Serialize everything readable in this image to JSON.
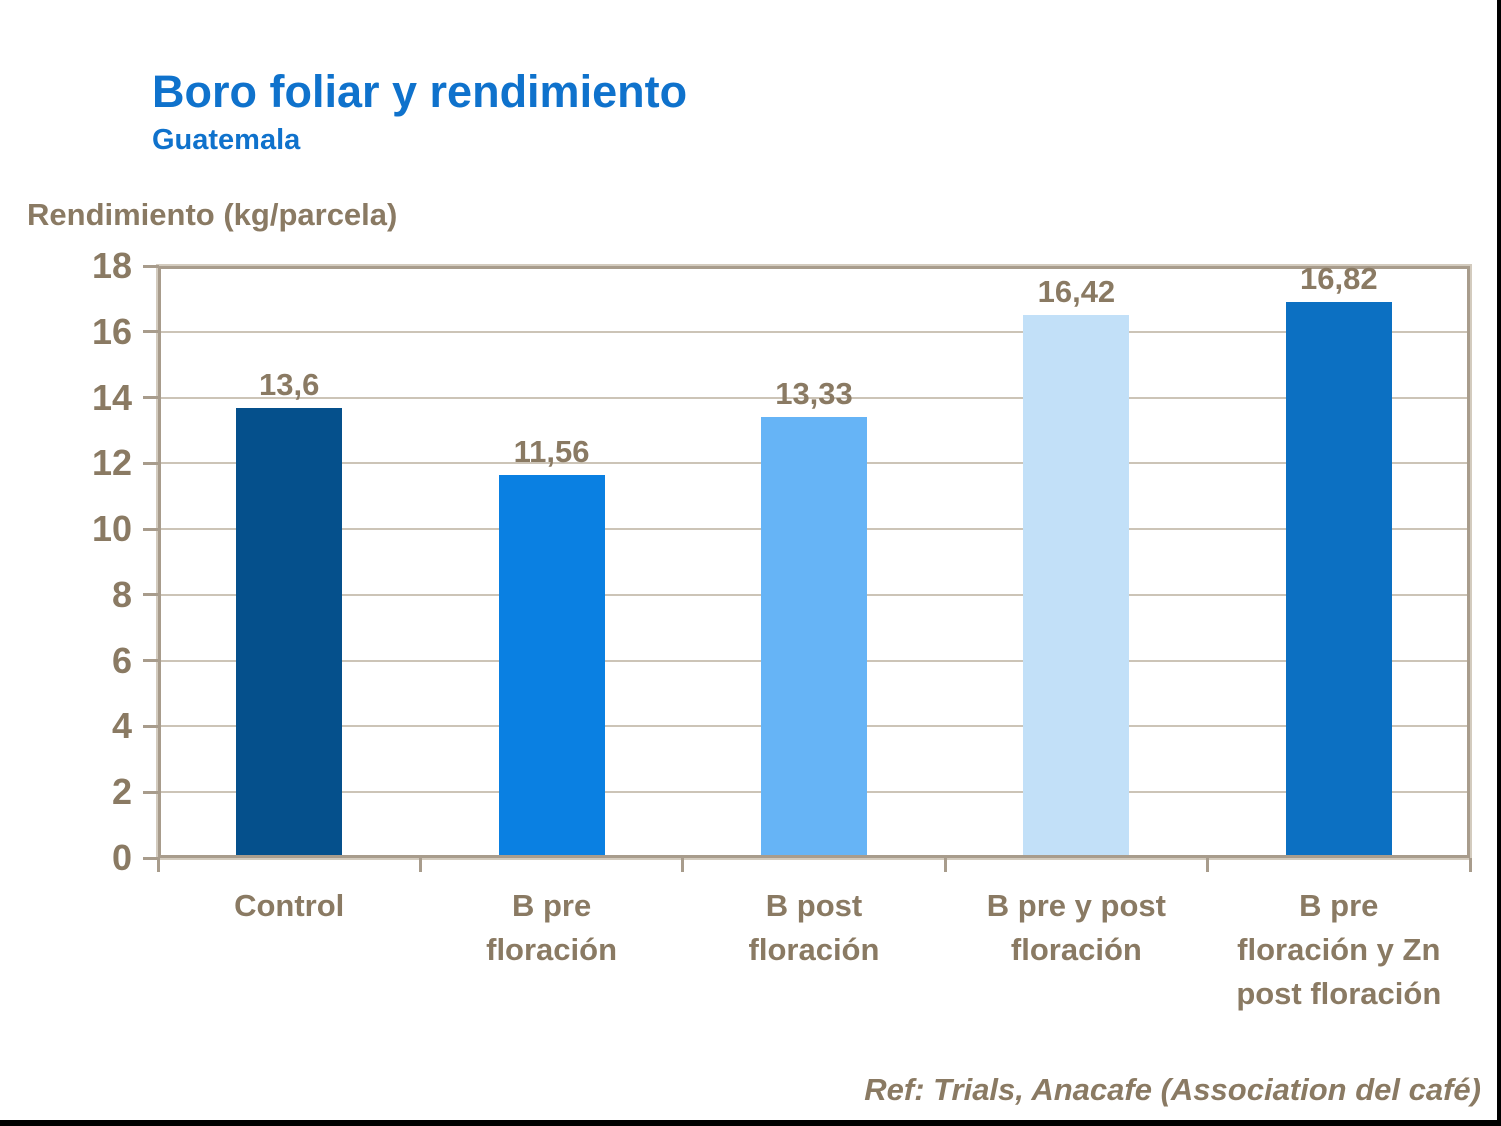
{
  "slide": {
    "title": "Boro foliar y rendimiento",
    "subtitle": "Guatemala",
    "reference": "Ref: Trials, Anacafe (Association del café)"
  },
  "chart_data": {
    "type": "bar",
    "title": "Boro foliar y rendimiento",
    "subtitle": "Guatemala",
    "xlabel": "",
    "ylabel": "Rendimiento (kg/parcela)",
    "categories": [
      "Control",
      "B pre floración",
      "B post floración",
      "B pre y post floración",
      "B pre floración y Zn post floración"
    ],
    "category_lines": [
      [
        "Control"
      ],
      [
        "B pre",
        "floración"
      ],
      [
        "B post",
        "floración"
      ],
      [
        "B pre y post",
        "floración"
      ],
      [
        "B pre",
        "floración y Zn",
        "post floración"
      ]
    ],
    "values": [
      13.6,
      11.56,
      13.33,
      16.42,
      16.82
    ],
    "value_labels": [
      "13,6",
      "11,56",
      "13,33",
      "16,42",
      "16,82"
    ],
    "ylim": [
      0,
      18
    ],
    "ytick_step": 2,
    "grid": true,
    "legend_position": "none",
    "annotation": "Ref: Trials, Anacafe (Association del café)",
    "bar_colors": [
      "#05508C",
      "#0A80E2",
      "#66B4F6",
      "#C2E0F8",
      "#0C70C2"
    ]
  },
  "colors": {
    "title_blue": "#0F72CC",
    "text_brown": "#8A7A63",
    "gridline": "#CCC4B7",
    "axis_border": "#A89C8C",
    "axis_border_highlight": "#D3CBBE",
    "frame": "#000000",
    "background": "#FFFFFF"
  }
}
